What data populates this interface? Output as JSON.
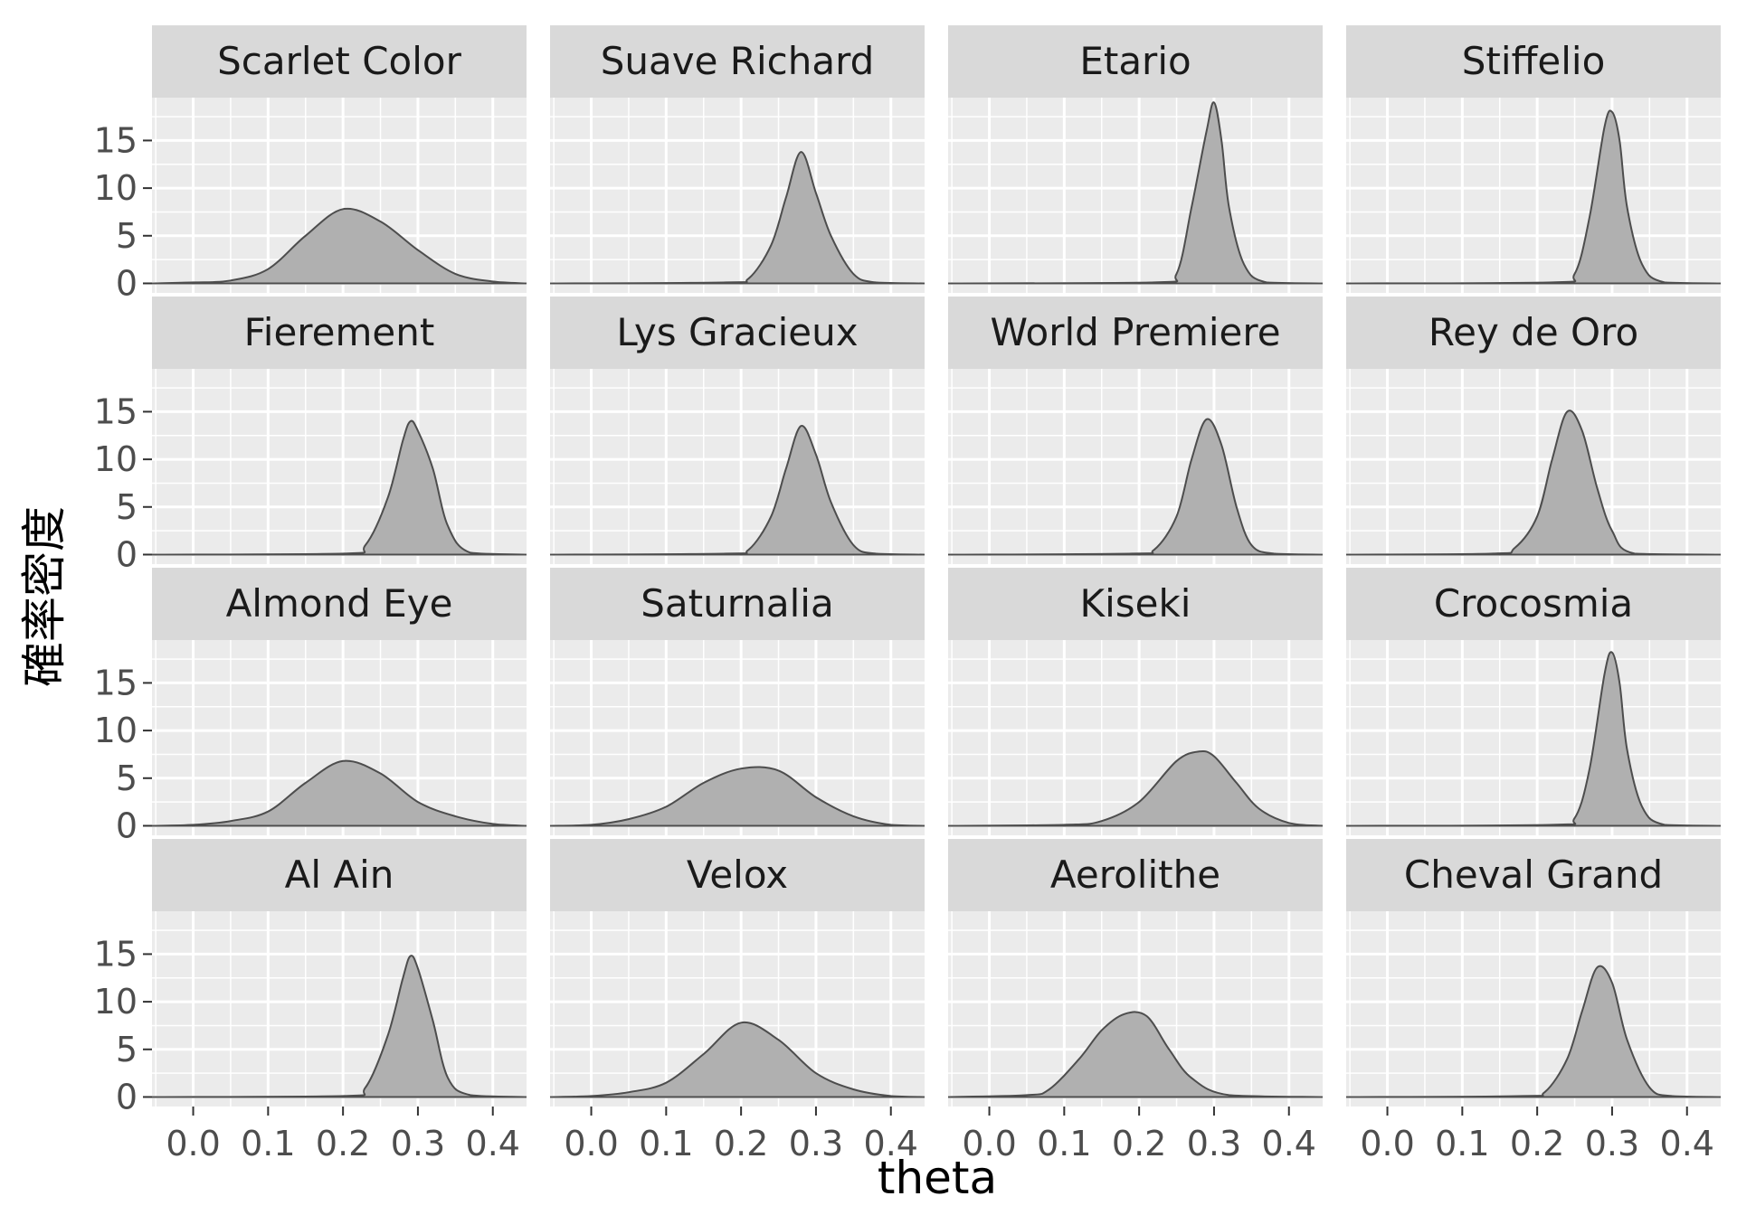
{
  "chart_data": {
    "type": "area",
    "xlabel": "theta",
    "ylabel": "確率密度",
    "xlim": [
      -0.055,
      0.445
    ],
    "ylim": [
      -1,
      19.5
    ],
    "x_ticks": [
      0.0,
      0.1,
      0.2,
      0.3,
      0.4
    ],
    "x_tick_labels": [
      "0.0",
      "0.1",
      "0.2",
      "0.3",
      "0.4"
    ],
    "y_ticks": [
      0,
      5,
      10,
      15
    ],
    "y_tick_labels": [
      "0",
      "5",
      "10",
      "15"
    ],
    "grid": true,
    "layout": "facet 4x4",
    "colors": {
      "fill": "#b0b0b0",
      "line": "#4d4d4d",
      "panel": "#ebebeb",
      "grid": "#ffffff",
      "strip": "#d9d9d9"
    },
    "panels": [
      {
        "name": "Scarlet Color",
        "x": [
          -0.055,
          0.0,
          0.05,
          0.1,
          0.15,
          0.2,
          0.25,
          0.3,
          0.35,
          0.4,
          0.445
        ],
        "density": [
          0,
          0.1,
          0.3,
          1.5,
          5.0,
          7.8,
          6.5,
          3.5,
          1.0,
          0.2,
          0
        ]
      },
      {
        "name": "Suave Richard",
        "x": [
          -0.055,
          0.18,
          0.21,
          0.24,
          0.26,
          0.28,
          0.3,
          0.32,
          0.35,
          0.38,
          0.445
        ],
        "density": [
          0,
          0.1,
          0.5,
          4.0,
          9.0,
          13.8,
          9.5,
          5.0,
          1.0,
          0.1,
          0
        ]
      },
      {
        "name": "Etario",
        "x": [
          -0.055,
          0.22,
          0.25,
          0.27,
          0.29,
          0.3,
          0.31,
          0.32,
          0.34,
          0.37,
          0.445
        ],
        "density": [
          0,
          0.1,
          1.0,
          8.0,
          16.0,
          19.0,
          15.0,
          8.0,
          2.0,
          0.1,
          0
        ]
      },
      {
        "name": "Stiffelio",
        "x": [
          -0.055,
          0.22,
          0.25,
          0.27,
          0.29,
          0.3,
          0.31,
          0.32,
          0.34,
          0.37,
          0.445
        ],
        "density": [
          0,
          0.1,
          1.0,
          7.0,
          16.5,
          18.0,
          15.0,
          8.0,
          2.0,
          0.1,
          0
        ]
      },
      {
        "name": "Fierement",
        "x": [
          -0.055,
          0.2,
          0.23,
          0.26,
          0.28,
          0.29,
          0.3,
          0.32,
          0.34,
          0.37,
          0.445
        ],
        "density": [
          0,
          0.1,
          1.0,
          6.0,
          12.0,
          14.0,
          13.0,
          9.0,
          3.0,
          0.2,
          0
        ]
      },
      {
        "name": "Lys Gracieux",
        "x": [
          -0.055,
          0.18,
          0.21,
          0.24,
          0.26,
          0.28,
          0.3,
          0.32,
          0.35,
          0.38,
          0.445
        ],
        "density": [
          0,
          0.1,
          0.5,
          4.0,
          9.0,
          13.5,
          10.5,
          5.5,
          1.0,
          0.1,
          0
        ]
      },
      {
        "name": "World Premiere",
        "x": [
          -0.055,
          0.19,
          0.22,
          0.25,
          0.27,
          0.29,
          0.31,
          0.33,
          0.35,
          0.38,
          0.445
        ],
        "density": [
          0,
          0.1,
          0.5,
          4.0,
          10.0,
          14.2,
          11.5,
          5.0,
          1.0,
          0.1,
          0
        ]
      },
      {
        "name": "Rey de Oro",
        "x": [
          -0.055,
          0.14,
          0.17,
          0.2,
          0.22,
          0.24,
          0.26,
          0.28,
          0.3,
          0.33,
          0.445
        ],
        "density": [
          0,
          0.1,
          0.7,
          4.0,
          10.0,
          15.0,
          13.0,
          7.0,
          2.5,
          0.1,
          0
        ]
      },
      {
        "name": "Almond Eye",
        "x": [
          -0.055,
          0.0,
          0.05,
          0.1,
          0.15,
          0.2,
          0.25,
          0.3,
          0.35,
          0.4,
          0.445
        ],
        "density": [
          0,
          0.1,
          0.5,
          1.5,
          4.5,
          6.8,
          5.5,
          2.5,
          1.0,
          0.2,
          0
        ]
      },
      {
        "name": "Saturnalia",
        "x": [
          -0.055,
          0.0,
          0.05,
          0.1,
          0.15,
          0.2,
          0.25,
          0.3,
          0.35,
          0.4,
          0.445
        ],
        "density": [
          0,
          0.1,
          0.7,
          2.0,
          4.5,
          6.0,
          5.8,
          3.0,
          1.0,
          0.1,
          0
        ]
      },
      {
        "name": "Kiseki",
        "x": [
          -0.055,
          0.1,
          0.15,
          0.2,
          0.25,
          0.28,
          0.3,
          0.33,
          0.36,
          0.4,
          0.445
        ],
        "density": [
          0,
          0.1,
          0.5,
          2.5,
          6.8,
          7.8,
          7.3,
          4.5,
          1.8,
          0.3,
          0
        ]
      },
      {
        "name": "Crocosmia",
        "x": [
          -0.055,
          0.22,
          0.25,
          0.27,
          0.29,
          0.3,
          0.31,
          0.32,
          0.34,
          0.37,
          0.445
        ],
        "density": [
          0,
          0.1,
          0.8,
          6.0,
          16.0,
          18.2,
          15.0,
          8.0,
          2.0,
          0.1,
          0
        ]
      },
      {
        "name": "Al Ain",
        "x": [
          -0.055,
          0.2,
          0.23,
          0.26,
          0.28,
          0.29,
          0.3,
          0.32,
          0.34,
          0.37,
          0.445
        ],
        "density": [
          0,
          0.1,
          1.0,
          6.5,
          12.5,
          14.8,
          13.5,
          8.0,
          2.0,
          0.2,
          0
        ]
      },
      {
        "name": "Velox",
        "x": [
          -0.055,
          0.0,
          0.05,
          0.1,
          0.15,
          0.2,
          0.25,
          0.3,
          0.35,
          0.4,
          0.445
        ],
        "density": [
          0,
          0.1,
          0.5,
          1.5,
          4.5,
          7.8,
          6.0,
          2.5,
          0.8,
          0.1,
          0
        ]
      },
      {
        "name": "Aerolithe",
        "x": [
          -0.055,
          0.05,
          0.08,
          0.12,
          0.15,
          0.18,
          0.21,
          0.24,
          0.27,
          0.32,
          0.445
        ],
        "density": [
          0,
          0.2,
          0.8,
          4.0,
          7.0,
          8.7,
          8.5,
          5.0,
          2.0,
          0.2,
          0
        ]
      },
      {
        "name": "Cheval Grand",
        "x": [
          -0.055,
          0.18,
          0.21,
          0.24,
          0.26,
          0.28,
          0.3,
          0.32,
          0.35,
          0.38,
          0.445
        ],
        "density": [
          0,
          0.1,
          0.5,
          4.0,
          9.0,
          13.6,
          12.0,
          6.0,
          1.0,
          0.1,
          0
        ]
      }
    ]
  }
}
